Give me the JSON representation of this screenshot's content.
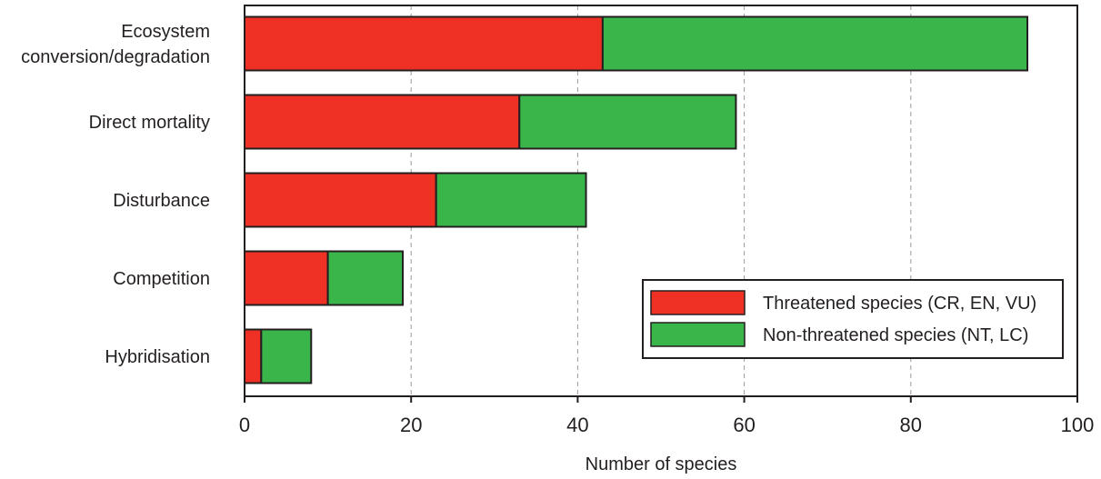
{
  "chart_data": {
    "type": "bar",
    "orientation": "horizontal",
    "stacked": true,
    "categories": [
      [
        "Ecosystem",
        "conversion/degradation"
      ],
      [
        "Direct mortality"
      ],
      [
        "Disturbance"
      ],
      [
        "Competition"
      ],
      [
        "Hybridisation"
      ]
    ],
    "series": [
      {
        "name": "Threatened species (CR, EN, VU)",
        "color": "#ee3124",
        "values": [
          43,
          33,
          23,
          10,
          2
        ]
      },
      {
        "name": "Non-threatened species (NT, LC)",
        "color": "#39b54a",
        "values": [
          51,
          26,
          18,
          9,
          6
        ]
      }
    ],
    "xlabel": "Number of species",
    "ylabel": "",
    "xlim": [
      0,
      100
    ],
    "xticks": [
      0,
      20,
      40,
      60,
      80,
      100
    ],
    "grid": "vertical dashed",
    "legend_position": "bottom-right inside"
  }
}
